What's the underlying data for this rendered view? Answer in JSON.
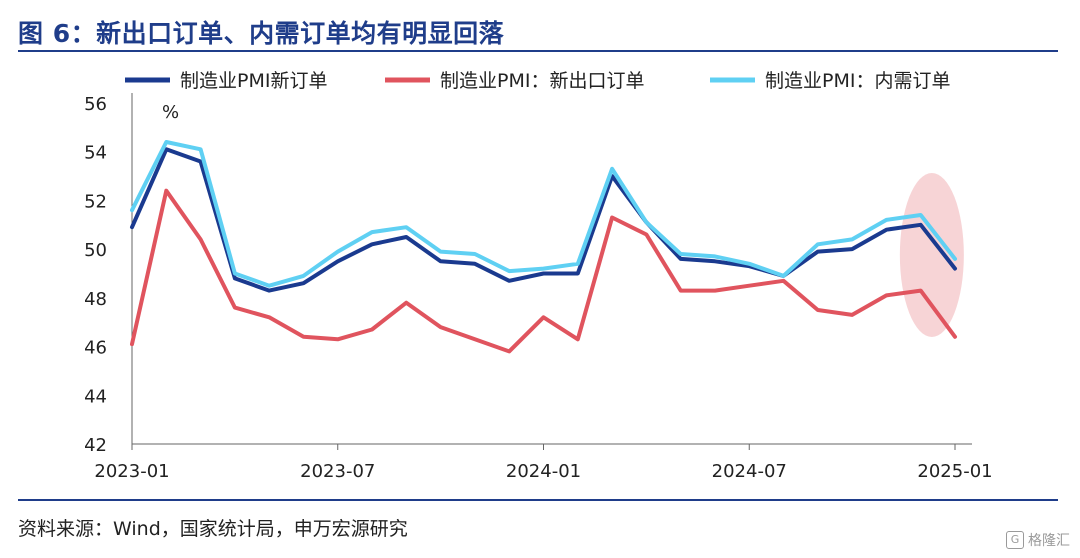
{
  "title": "图 6：新出口订单、内需订单均有明显回落",
  "source": "资料来源：Wind，国家统计局，申万宏源研究",
  "watermark": "格隆汇",
  "colors": {
    "title": "#1f3d8a",
    "series": [
      "#1a3a8f",
      "#e0545e",
      "#5fd0f3"
    ],
    "highlight": "#f4c6c8"
  },
  "chart_data": {
    "type": "line",
    "unit_label": "%",
    "ylim": [
      42,
      56
    ],
    "yticks": [
      42,
      44,
      46,
      48,
      50,
      52,
      54,
      56
    ],
    "xtick_labels": [
      "2023-01",
      "2023-07",
      "2024-01",
      "2024-07",
      "2025-01"
    ],
    "xtick_positions": [
      0,
      6,
      12,
      18,
      24
    ],
    "x": [
      "2023-01",
      "2023-02",
      "2023-03",
      "2023-04",
      "2023-05",
      "2023-06",
      "2023-07",
      "2023-08",
      "2023-09",
      "2023-10",
      "2023-11",
      "2023-12",
      "2024-01",
      "2024-02",
      "2024-03",
      "2024-04",
      "2024-05",
      "2024-06",
      "2024-07",
      "2024-08",
      "2024-09",
      "2024-10",
      "2024-11",
      "2024-12",
      "2025-01"
    ],
    "series": [
      {
        "name": "制造业PMI新订单",
        "values": [
          50.9,
          54.1,
          53.6,
          48.8,
          48.3,
          48.6,
          49.5,
          50.2,
          50.5,
          49.5,
          49.4,
          48.7,
          49.0,
          49.0,
          53.0,
          51.1,
          49.6,
          49.5,
          49.3,
          48.9,
          49.9,
          50.0,
          50.8,
          51.0,
          49.2
        ]
      },
      {
        "name": "制造业PMI：新出口订单",
        "values": [
          46.1,
          52.4,
          50.4,
          47.6,
          47.2,
          46.4,
          46.3,
          46.7,
          47.8,
          46.8,
          46.3,
          45.8,
          47.2,
          46.3,
          51.3,
          50.6,
          48.3,
          48.3,
          48.5,
          48.7,
          47.5,
          47.3,
          48.1,
          48.3,
          46.4
        ]
      },
      {
        "name": "制造业PMI：内需订单",
        "values": [
          51.6,
          54.4,
          54.1,
          49.0,
          48.5,
          48.9,
          49.9,
          50.7,
          50.9,
          49.9,
          49.8,
          49.1,
          49.2,
          49.4,
          53.3,
          51.1,
          49.8,
          49.7,
          49.4,
          48.9,
          50.2,
          50.4,
          51.2,
          51.4,
          49.6
        ]
      }
    ],
    "highlight_range": [
      "2024-12",
      "2025-01"
    ]
  }
}
